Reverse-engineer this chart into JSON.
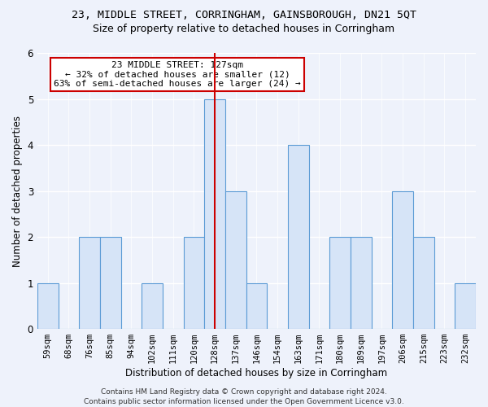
{
  "title_line1": "23, MIDDLE STREET, CORRINGHAM, GAINSBOROUGH, DN21 5QT",
  "title_line2": "Size of property relative to detached houses in Corringham",
  "xlabel": "Distribution of detached houses by size in Corringham",
  "ylabel": "Number of detached properties",
  "categories": [
    "59sqm",
    "68sqm",
    "76sqm",
    "85sqm",
    "94sqm",
    "102sqm",
    "111sqm",
    "120sqm",
    "128sqm",
    "137sqm",
    "146sqm",
    "154sqm",
    "163sqm",
    "171sqm",
    "180sqm",
    "189sqm",
    "197sqm",
    "206sqm",
    "215sqm",
    "223sqm",
    "232sqm"
  ],
  "values": [
    1,
    0,
    2,
    2,
    0,
    1,
    0,
    2,
    5,
    3,
    1,
    0,
    4,
    0,
    2,
    2,
    0,
    3,
    2,
    0,
    1
  ],
  "highlight_index": 8,
  "bar_color": "#d6e4f7",
  "bar_edge_color": "#5b9bd5",
  "highlight_line_color": "#cc0000",
  "annotation_text": "23 MIDDLE STREET: 127sqm\n← 32% of detached houses are smaller (12)\n63% of semi-detached houses are larger (24) →",
  "annotation_box_color": "#ffffff",
  "annotation_box_edge": "#cc0000",
  "ylim": [
    0,
    6
  ],
  "yticks": [
    0,
    1,
    2,
    3,
    4,
    5,
    6
  ],
  "footer_text": "Contains HM Land Registry data © Crown copyright and database right 2024.\nContains public sector information licensed under the Open Government Licence v3.0.",
  "bg_color": "#eef2fb",
  "grid_color": "#ffffff",
  "title1_fontsize": 9.5,
  "title2_fontsize": 9,
  "axis_label_fontsize": 8.5,
  "tick_fontsize": 7.5,
  "annotation_fontsize": 8,
  "footer_fontsize": 6.5
}
